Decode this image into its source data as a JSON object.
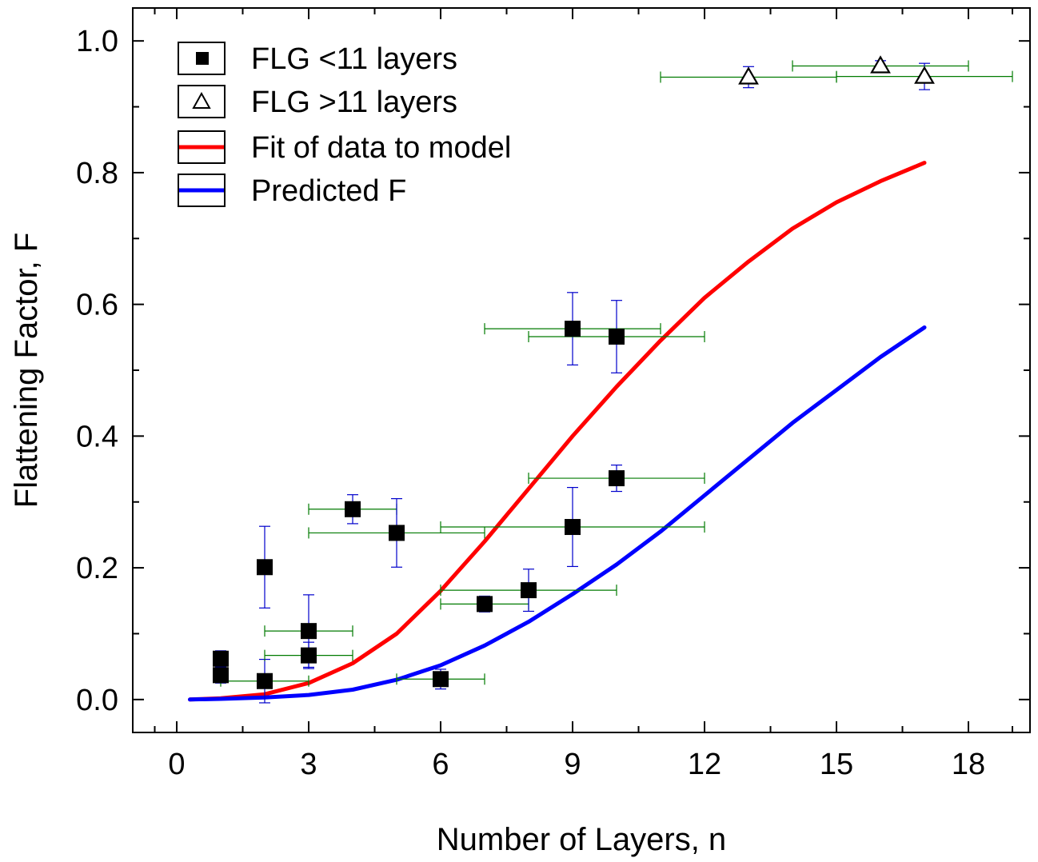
{
  "chart_data": {
    "type": "scatter",
    "title": "",
    "xlabel": "Number of Layers, n",
    "ylabel": "Flattening Factor, F",
    "xlim": [
      -1,
      19.4
    ],
    "ylim": [
      -0.05,
      1.05
    ],
    "x_ticks": [
      0,
      3,
      6,
      9,
      12,
      15,
      18
    ],
    "x_tick_labels": [
      "0",
      "3",
      "6",
      "9",
      "12",
      "15",
      "18"
    ],
    "x_minor_ticks": [
      -0.5,
      1.5,
      4.5,
      7.5,
      10.5,
      13.5,
      16.5,
      19.0
    ],
    "y_ticks": [
      0.0,
      0.2,
      0.4,
      0.6,
      0.8,
      1.0
    ],
    "y_tick_labels": [
      "0.0",
      "0.2",
      "0.4",
      "0.6",
      "0.8",
      "1.0"
    ],
    "y_minor_ticks": [
      0.1,
      0.3,
      0.5,
      0.7,
      0.9
    ],
    "legend": {
      "position": "top-left",
      "entries": [
        {
          "label": "FLG <11 layers",
          "marker": "filled-square"
        },
        {
          "label": "FLG >11 layers",
          "marker": "open-triangle"
        },
        {
          "label": "Fit of data to model",
          "line_color": "#ff0000"
        },
        {
          "label": "Predicted F",
          "line_color": "#0000ff"
        }
      ]
    },
    "series": [
      {
        "name": "FLG <11 layers",
        "marker": "square",
        "color": "#000000",
        "xerr_color": "#007a00",
        "yerr_color": "#0000cc",
        "points": [
          {
            "x": 1,
            "y": 0.062,
            "xerr": 0,
            "yerr": 0.012
          },
          {
            "x": 1,
            "y": 0.037,
            "xerr": 0,
            "yerr": 0.012
          },
          {
            "x": 2,
            "y": 0.201,
            "xerr": 0,
            "yerr": 0.062
          },
          {
            "x": 2,
            "y": 0.028,
            "xerr": 1,
            "yerr": 0.033
          },
          {
            "x": 3,
            "y": 0.104,
            "xerr": 1,
            "yerr": 0.055
          },
          {
            "x": 3,
            "y": 0.067,
            "xerr": 1,
            "yerr": 0.02
          },
          {
            "x": 4,
            "y": 0.289,
            "xerr": 1,
            "yerr": 0.022
          },
          {
            "x": 5,
            "y": 0.253,
            "xerr": 2,
            "yerr": 0.052
          },
          {
            "x": 6,
            "y": 0.031,
            "xerr": 1,
            "yerr": 0.015
          },
          {
            "x": 7,
            "y": 0.145,
            "xerr": 1,
            "yerr": 0.012
          },
          {
            "x": 8,
            "y": 0.166,
            "xerr": 2,
            "yerr": 0.032
          },
          {
            "x": 9,
            "y": 0.563,
            "xerr": 2,
            "yerr": 0.055
          },
          {
            "x": 9,
            "y": 0.262,
            "xerr": 3,
            "yerr": 0.06
          },
          {
            "x": 10,
            "y": 0.551,
            "xerr": 2,
            "yerr": 0.055
          },
          {
            "x": 10,
            "y": 0.336,
            "xerr": 2,
            "yerr": 0.02
          }
        ]
      },
      {
        "name": "FLG >11 layers",
        "marker": "triangle-open",
        "color": "#000000",
        "xerr_color": "#007a00",
        "yerr_color": "#0000cc",
        "points": [
          {
            "x": 13,
            "y": 0.945,
            "xerr": 2,
            "yerr": 0.016
          },
          {
            "x": 16,
            "y": 0.962,
            "xerr": 2,
            "yerr": 0.008
          },
          {
            "x": 17,
            "y": 0.946,
            "xerr": 2,
            "yerr": 0.02
          }
        ]
      },
      {
        "name": "Fit of data to model",
        "type": "line",
        "color": "#ff0000",
        "x": [
          0.3,
          1,
          2,
          3,
          4,
          5,
          6,
          7,
          8,
          9,
          10,
          11,
          12,
          13,
          14,
          15,
          16,
          17
        ],
        "y": [
          0.0,
          0.002,
          0.008,
          0.025,
          0.055,
          0.1,
          0.165,
          0.24,
          0.32,
          0.4,
          0.475,
          0.545,
          0.61,
          0.665,
          0.715,
          0.755,
          0.787,
          0.815
        ]
      },
      {
        "name": "Predicted F",
        "type": "line",
        "color": "#0000ff",
        "x": [
          0.3,
          1,
          2,
          3,
          4,
          5,
          6,
          7,
          8,
          9,
          10,
          11,
          12,
          13,
          14,
          15,
          16,
          17
        ],
        "y": [
          0.0,
          0.001,
          0.003,
          0.007,
          0.015,
          0.03,
          0.052,
          0.082,
          0.118,
          0.16,
          0.205,
          0.255,
          0.31,
          0.365,
          0.42,
          0.47,
          0.52,
          0.565
        ]
      }
    ]
  }
}
